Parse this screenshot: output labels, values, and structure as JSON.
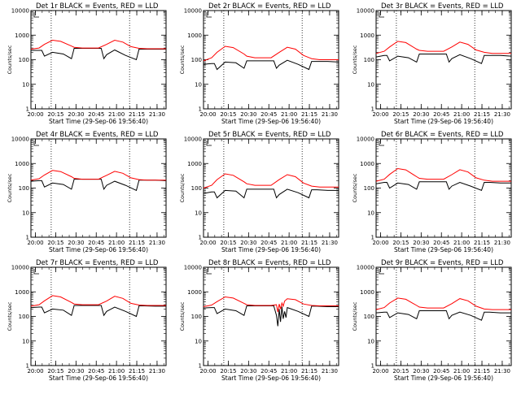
{
  "colors": {
    "events": "#000000",
    "lld": "#ff0000",
    "axis": "#000000",
    "background": "#ffffff"
  },
  "chart_data": [
    {
      "type": "line",
      "title": "Det 1r BLACK = Events, RED = LLD",
      "xlabel": "Start Time (29-Sep-06 19:56:40)",
      "ylabel": "Counts/sec",
      "x_ticks": [
        "20:00",
        "20:15",
        "20:30",
        "20:45",
        "21:00",
        "21:15",
        "21:30"
      ],
      "y_ticks": [
        "1",
        "10",
        "100",
        "1000",
        "10000"
      ],
      "yscale": "log",
      "ylim": [
        1,
        10000
      ],
      "xlim_minutes": [
        0,
        100
      ],
      "dotted_lines_minutes": [
        15,
        73
      ],
      "series": [
        {
          "name": "Events",
          "x_minutes": [
            0,
            6,
            8,
            10,
            16,
            24,
            30,
            32,
            33,
            38,
            46,
            52,
            54,
            56,
            62,
            70,
            78,
            80,
            84,
            92,
            100
          ],
          "values": [
            240,
            240,
            240,
            140,
            200,
            170,
            110,
            290,
            290,
            290,
            290,
            290,
            110,
            160,
            250,
            150,
            100,
            270,
            270,
            270,
            270
          ]
        },
        {
          "name": "LLD",
          "x_minutes": [
            0,
            6,
            10,
            16,
            22,
            30,
            32,
            38,
            44,
            50,
            56,
            62,
            68,
            74,
            80,
            86,
            92,
            100
          ],
          "values": [
            270,
            300,
            420,
            620,
            560,
            360,
            320,
            300,
            300,
            300,
            420,
            620,
            520,
            340,
            290,
            280,
            280,
            280
          ]
        }
      ]
    },
    {
      "type": "line",
      "title": "Det 2r BLACK = Events, RED = LLD",
      "xlabel": "Start Time (29-Sep-06 19:56:40)",
      "ylabel": "Counts/sec",
      "x_ticks": [
        "20:00",
        "20:15",
        "20:30",
        "20:45",
        "21:00",
        "21:15",
        "21:30"
      ],
      "y_ticks": [
        "1",
        "10",
        "100",
        "1000",
        "10000"
      ],
      "yscale": "log",
      "ylim": [
        1,
        10000
      ],
      "xlim_minutes": [
        0,
        100
      ],
      "dotted_lines_minutes": [
        15,
        73
      ],
      "series": [
        {
          "name": "Events",
          "x_minutes": [
            0,
            6,
            8,
            10,
            16,
            24,
            30,
            32,
            33,
            38,
            46,
            52,
            54,
            56,
            62,
            70,
            78,
            80,
            84,
            92,
            100
          ],
          "values": [
            65,
            70,
            70,
            40,
            80,
            75,
            45,
            90,
            90,
            90,
            90,
            90,
            45,
            60,
            95,
            65,
            40,
            85,
            85,
            85,
            80
          ]
        },
        {
          "name": "LLD",
          "x_minutes": [
            0,
            6,
            10,
            16,
            22,
            30,
            32,
            38,
            44,
            50,
            56,
            62,
            68,
            74,
            80,
            86,
            92,
            100
          ],
          "values": [
            90,
            120,
            200,
            350,
            310,
            170,
            140,
            120,
            120,
            120,
            200,
            320,
            270,
            150,
            110,
            100,
            100,
            100
          ]
        }
      ]
    },
    {
      "type": "line",
      "title": "Det 3r BLACK = Events, RED = LLD",
      "xlabel": "Start Time (29-Sep-06 19:56:40)",
      "ylabel": "Counts/sec",
      "x_ticks": [
        "20:00",
        "20:15",
        "20:30",
        "20:45",
        "21:00",
        "21:15",
        "21:30"
      ],
      "y_ticks": [
        "1",
        "10",
        "100",
        "1000",
        "10000"
      ],
      "yscale": "log",
      "ylim": [
        1,
        10000
      ],
      "xlim_minutes": [
        0,
        100
      ],
      "dotted_lines_minutes": [
        15,
        73
      ],
      "series": [
        {
          "name": "Events",
          "x_minutes": [
            0,
            6,
            8,
            10,
            16,
            24,
            30,
            32,
            33,
            38,
            46,
            52,
            54,
            56,
            62,
            70,
            78,
            80,
            84,
            92,
            100
          ],
          "values": [
            130,
            150,
            150,
            90,
            140,
            120,
            80,
            170,
            170,
            170,
            170,
            170,
            80,
            110,
            160,
            110,
            70,
            150,
            150,
            150,
            140
          ]
        },
        {
          "name": "LLD",
          "x_minutes": [
            0,
            6,
            10,
            16,
            22,
            30,
            32,
            38,
            44,
            50,
            56,
            62,
            68,
            74,
            80,
            86,
            92,
            100
          ],
          "values": [
            180,
            220,
            330,
            560,
            500,
            270,
            240,
            220,
            220,
            220,
            330,
            520,
            420,
            250,
            200,
            180,
            180,
            180
          ]
        }
      ]
    },
    {
      "type": "line",
      "title": "Det 4r BLACK = Events, RED = LLD",
      "xlabel": "Start Time (29-Sep-06 19:56:40)",
      "ylabel": "Counts/sec",
      "x_ticks": [
        "20:00",
        "20:15",
        "20:30",
        "20:45",
        "21:00",
        "21:15",
        "21:30"
      ],
      "y_ticks": [
        "1",
        "10",
        "100",
        "1000",
        "10000"
      ],
      "yscale": "log",
      "ylim": [
        1,
        10000
      ],
      "xlim_minutes": [
        0,
        100
      ],
      "dotted_lines_minutes": [
        15,
        73
      ],
      "series": [
        {
          "name": "Events",
          "x_minutes": [
            0,
            6,
            8,
            10,
            16,
            24,
            30,
            32,
            33,
            38,
            46,
            52,
            54,
            56,
            62,
            70,
            78,
            80,
            84,
            92,
            100
          ],
          "values": [
            190,
            200,
            200,
            110,
            160,
            140,
            90,
            230,
            230,
            230,
            230,
            230,
            90,
            130,
            190,
            130,
            80,
            210,
            210,
            210,
            200
          ]
        },
        {
          "name": "LLD",
          "x_minutes": [
            0,
            6,
            10,
            16,
            22,
            30,
            32,
            38,
            44,
            50,
            56,
            62,
            68,
            74,
            80,
            86,
            92,
            100
          ],
          "values": [
            210,
            240,
            340,
            520,
            470,
            290,
            250,
            230,
            230,
            230,
            330,
            480,
            400,
            260,
            220,
            210,
            210,
            210
          ]
        }
      ]
    },
    {
      "type": "line",
      "title": "Det 5r BLACK = Events, RED = LLD",
      "xlabel": "Start Time (29-Sep-06 19:56:40)",
      "ylabel": "Counts/sec",
      "x_ticks": [
        "20:00",
        "20:15",
        "20:30",
        "20:45",
        "21:00",
        "21:15",
        "21:30"
      ],
      "y_ticks": [
        "1",
        "10",
        "100",
        "1000",
        "10000"
      ],
      "yscale": "log",
      "ylim": [
        1,
        10000
      ],
      "xlim_minutes": [
        0,
        100
      ],
      "dotted_lines_minutes": [
        15,
        73
      ],
      "series": [
        {
          "name": "Events",
          "x_minutes": [
            0,
            6,
            8,
            10,
            16,
            24,
            30,
            32,
            33,
            38,
            46,
            52,
            54,
            56,
            62,
            70,
            78,
            80,
            84,
            92,
            100
          ],
          "values": [
            60,
            70,
            70,
            40,
            80,
            75,
            40,
            90,
            90,
            90,
            90,
            90,
            40,
            55,
            90,
            65,
            40,
            85,
            85,
            80,
            80
          ]
        },
        {
          "name": "LLD",
          "x_minutes": [
            0,
            6,
            10,
            16,
            22,
            30,
            32,
            38,
            44,
            50,
            56,
            62,
            68,
            74,
            80,
            86,
            92,
            100
          ],
          "values": [
            100,
            130,
            220,
            380,
            330,
            180,
            150,
            130,
            130,
            130,
            220,
            350,
            290,
            160,
            120,
            110,
            110,
            110
          ]
        }
      ]
    },
    {
      "type": "line",
      "title": "Det 6r BLACK = Events, RED = LLD",
      "xlabel": "Start Time (29-Sep-06 19:56:40)",
      "ylabel": "Counts/sec",
      "x_ticks": [
        "20:00",
        "20:15",
        "20:30",
        "20:45",
        "21:00",
        "21:15",
        "21:30"
      ],
      "y_ticks": [
        "1",
        "10",
        "100",
        "1000",
        "10000"
      ],
      "yscale": "log",
      "ylim": [
        1,
        10000
      ],
      "xlim_minutes": [
        0,
        100
      ],
      "dotted_lines_minutes": [
        15,
        73
      ],
      "series": [
        {
          "name": "Events",
          "x_minutes": [
            0,
            6,
            8,
            10,
            16,
            24,
            30,
            32,
            33,
            38,
            46,
            52,
            54,
            56,
            62,
            70,
            78,
            80,
            84,
            92,
            100
          ],
          "values": [
            150,
            170,
            170,
            100,
            160,
            140,
            90,
            180,
            180,
            180,
            180,
            180,
            90,
            120,
            170,
            120,
            80,
            170,
            170,
            160,
            160
          ]
        },
        {
          "name": "LLD",
          "x_minutes": [
            0,
            6,
            10,
            16,
            22,
            30,
            32,
            38,
            44,
            50,
            56,
            62,
            68,
            74,
            80,
            86,
            92,
            100
          ],
          "values": [
            190,
            230,
            360,
            620,
            550,
            290,
            250,
            230,
            230,
            230,
            350,
            560,
            450,
            260,
            210,
            190,
            190,
            190
          ]
        }
      ]
    },
    {
      "type": "line",
      "title": "Det 7r BLACK = Events, RED = LLD",
      "xlabel": "Start Time (29-Sep-06 19:56:40)",
      "ylabel": "Counts/sec",
      "x_ticks": [
        "20:00",
        "20:15",
        "20:30",
        "20:45",
        "21:00",
        "21:15",
        "21:30"
      ],
      "y_ticks": [
        "1",
        "10",
        "100",
        "1000",
        "10000"
      ],
      "yscale": "log",
      "ylim": [
        1,
        10000
      ],
      "xlim_minutes": [
        0,
        100
      ],
      "dotted_lines_minutes": [
        15,
        73
      ],
      "series": [
        {
          "name": "Events",
          "x_minutes": [
            0,
            6,
            8,
            10,
            16,
            24,
            30,
            32,
            33,
            38,
            46,
            52,
            54,
            56,
            62,
            70,
            78,
            80,
            84,
            92,
            100
          ],
          "values": [
            230,
            240,
            240,
            140,
            200,
            180,
            110,
            280,
            280,
            280,
            280,
            280,
            110,
            160,
            240,
            160,
            100,
            270,
            270,
            260,
            260
          ]
        },
        {
          "name": "LLD",
          "x_minutes": [
            0,
            6,
            10,
            16,
            22,
            30,
            32,
            38,
            44,
            50,
            56,
            62,
            68,
            74,
            80,
            86,
            92,
            100
          ],
          "values": [
            260,
            300,
            430,
            700,
            620,
            370,
            320,
            300,
            300,
            300,
            420,
            660,
            540,
            340,
            290,
            280,
            280,
            280
          ]
        }
      ]
    },
    {
      "type": "line",
      "title": "Det 8r BLACK = Events, RED = LLD",
      "xlabel": "Start Time (29-Sep-06 19:56:40)",
      "ylabel": "Counts/sec",
      "x_ticks": [
        "20:00",
        "20:15",
        "20:30",
        "20:45",
        "21:00",
        "21:15",
        "21:30"
      ],
      "y_ticks": [
        "1",
        "10",
        "100",
        "1000",
        "10000"
      ],
      "yscale": "log",
      "ylim": [
        1,
        10000
      ],
      "xlim_minutes": [
        0,
        100
      ],
      "dotted_lines_minutes": [
        15,
        73
      ],
      "series": [
        {
          "name": "Events",
          "x_minutes": [
            0,
            6,
            8,
            10,
            16,
            24,
            30,
            32,
            33,
            38,
            46,
            52,
            54,
            55,
            56,
            57,
            58,
            59,
            60,
            61,
            62,
            70,
            78,
            80,
            84,
            92,
            100
          ],
          "values": [
            220,
            230,
            230,
            130,
            200,
            170,
            110,
            270,
            270,
            270,
            270,
            270,
            110,
            40,
            200,
            60,
            250,
            80,
            160,
            90,
            230,
            160,
            100,
            260,
            260,
            250,
            250
          ]
        },
        {
          "name": "LLD",
          "x_minutes": [
            0,
            6,
            10,
            16,
            22,
            30,
            32,
            38,
            44,
            50,
            54,
            55,
            56,
            57,
            58,
            59,
            60,
            62,
            68,
            74,
            80,
            86,
            92,
            100
          ],
          "values": [
            250,
            290,
            400,
            620,
            560,
            340,
            300,
            280,
            280,
            280,
            300,
            150,
            320,
            200,
            350,
            260,
            420,
            520,
            480,
            320,
            280,
            270,
            270,
            270
          ]
        }
      ]
    },
    {
      "type": "line",
      "title": "Det 9r BLACK = Events, RED = LLD",
      "xlabel": "Start Time (29-Sep-06 19:56:40)",
      "ylabel": "Counts/sec",
      "x_ticks": [
        "20:00",
        "20:15",
        "20:30",
        "20:45",
        "21:00",
        "21:15",
        "21:30"
      ],
      "y_ticks": [
        "1",
        "10",
        "100",
        "1000",
        "10000"
      ],
      "yscale": "log",
      "ylim": [
        1,
        10000
      ],
      "xlim_minutes": [
        0,
        100
      ],
      "dotted_lines_minutes": [
        15,
        73
      ],
      "series": [
        {
          "name": "Events",
          "x_minutes": [
            0,
            6,
            8,
            10,
            16,
            24,
            30,
            32,
            33,
            38,
            46,
            52,
            54,
            56,
            62,
            70,
            78,
            80,
            84,
            92,
            100
          ],
          "values": [
            140,
            150,
            150,
            90,
            140,
            120,
            80,
            170,
            170,
            170,
            170,
            170,
            80,
            110,
            150,
            110,
            70,
            150,
            150,
            140,
            140
          ]
        },
        {
          "name": "LLD",
          "x_minutes": [
            0,
            6,
            10,
            16,
            22,
            30,
            32,
            38,
            44,
            50,
            56,
            62,
            68,
            74,
            80,
            86,
            92,
            100
          ],
          "values": [
            190,
            230,
            350,
            560,
            500,
            280,
            240,
            220,
            220,
            220,
            330,
            530,
            430,
            260,
            200,
            190,
            190,
            190
          ]
        }
      ]
    }
  ]
}
